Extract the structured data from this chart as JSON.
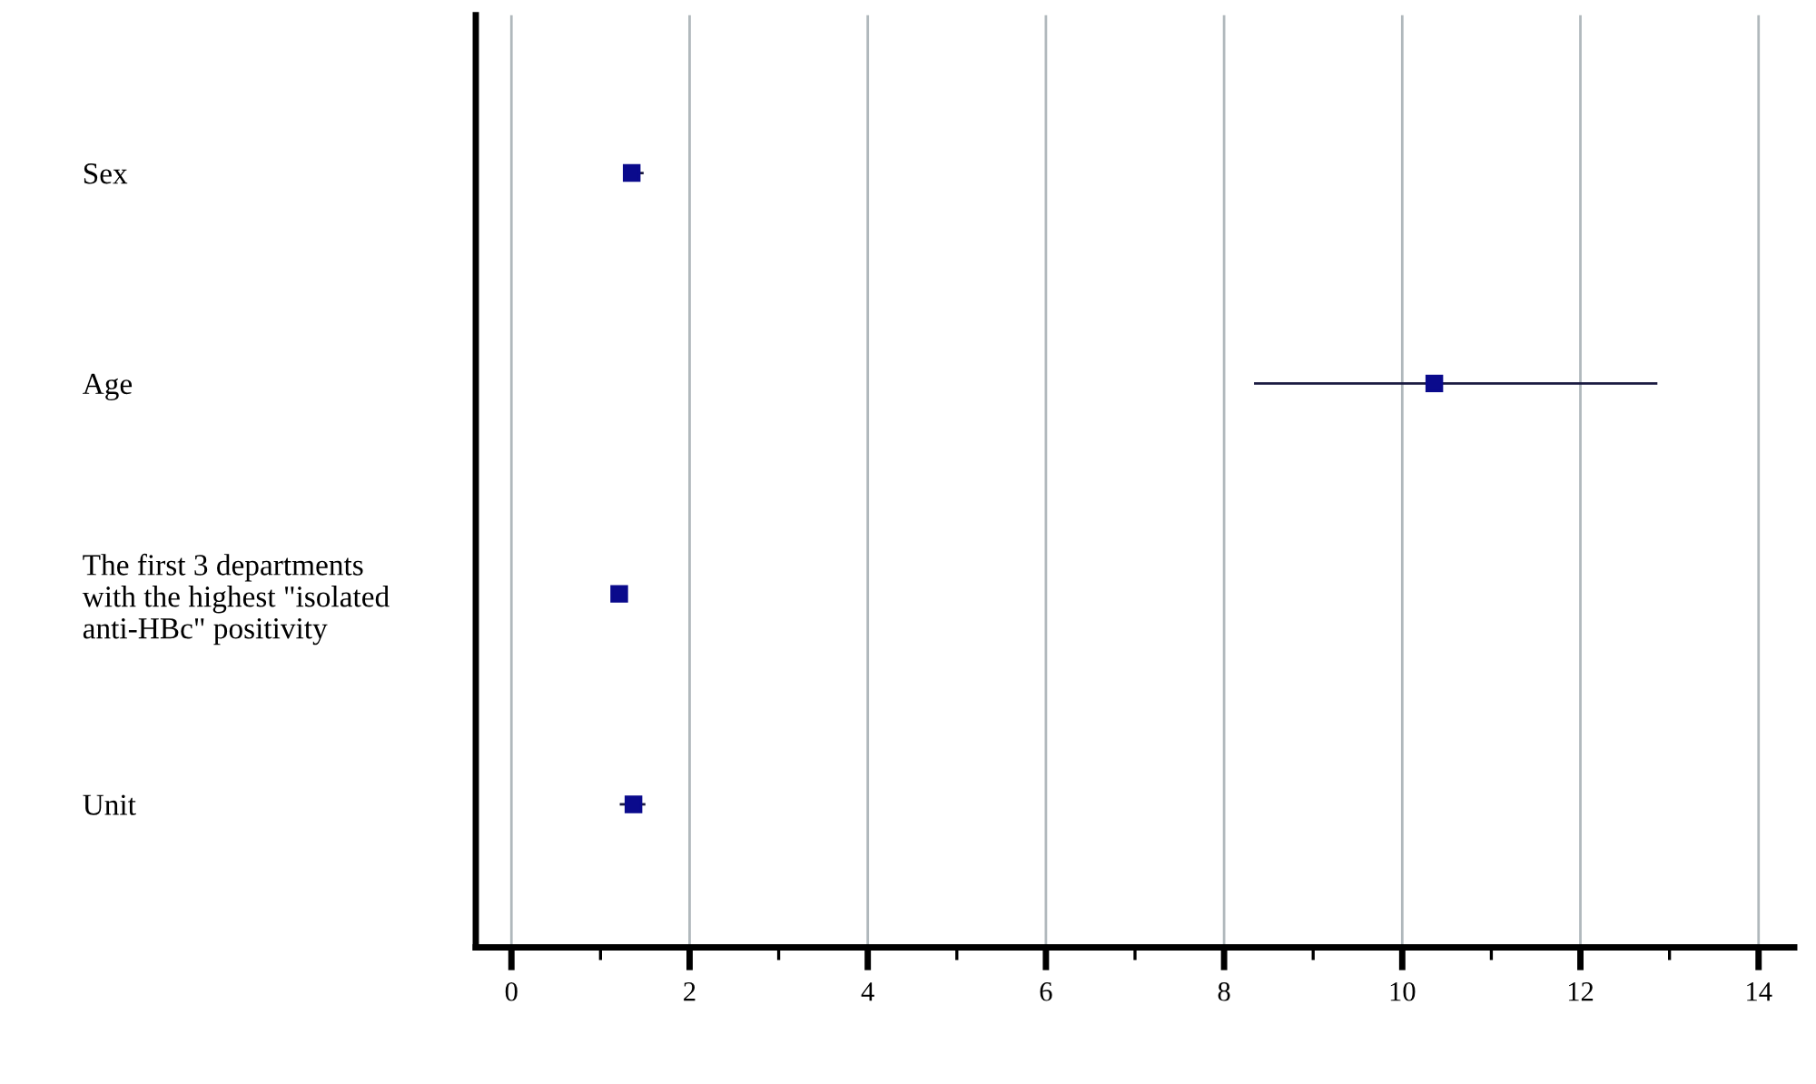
{
  "chart_data": {
    "type": "scatter",
    "orientation": "horizontal",
    "categories": [
      "Sex",
      "Age",
      "The first 3 departments\nwith the highest \"isolated\nanti-HBc\" positivity",
      "Unit"
    ],
    "series": [
      {
        "color": "#0a0a8c",
        "values": [
          1.35,
          10.36,
          1.21,
          1.37
        ],
        "errors": [
          [
            1.32,
            1.47
          ],
          [
            8.35,
            12.85
          ],
          [
            1.18,
            1.24
          ],
          [
            1.23,
            1.49
          ]
        ]
      }
    ],
    "marker": "square",
    "xlim": [
      -0.4,
      14.4
    ],
    "xticks": [
      0,
      {
        "value": 1,
        "label": null
      },
      2,
      {
        "value": 3,
        "label": null
      },
      4,
      {
        "value": 5,
        "label": null
      },
      6,
      {
        "value": 7,
        "label": null
      },
      8,
      {
        "value": 9,
        "label": null
      },
      10,
      {
        "value": 11,
        "label": null
      },
      12,
      {
        "value": 13,
        "label": null
      },
      14
    ],
    "grid": "x"
  }
}
